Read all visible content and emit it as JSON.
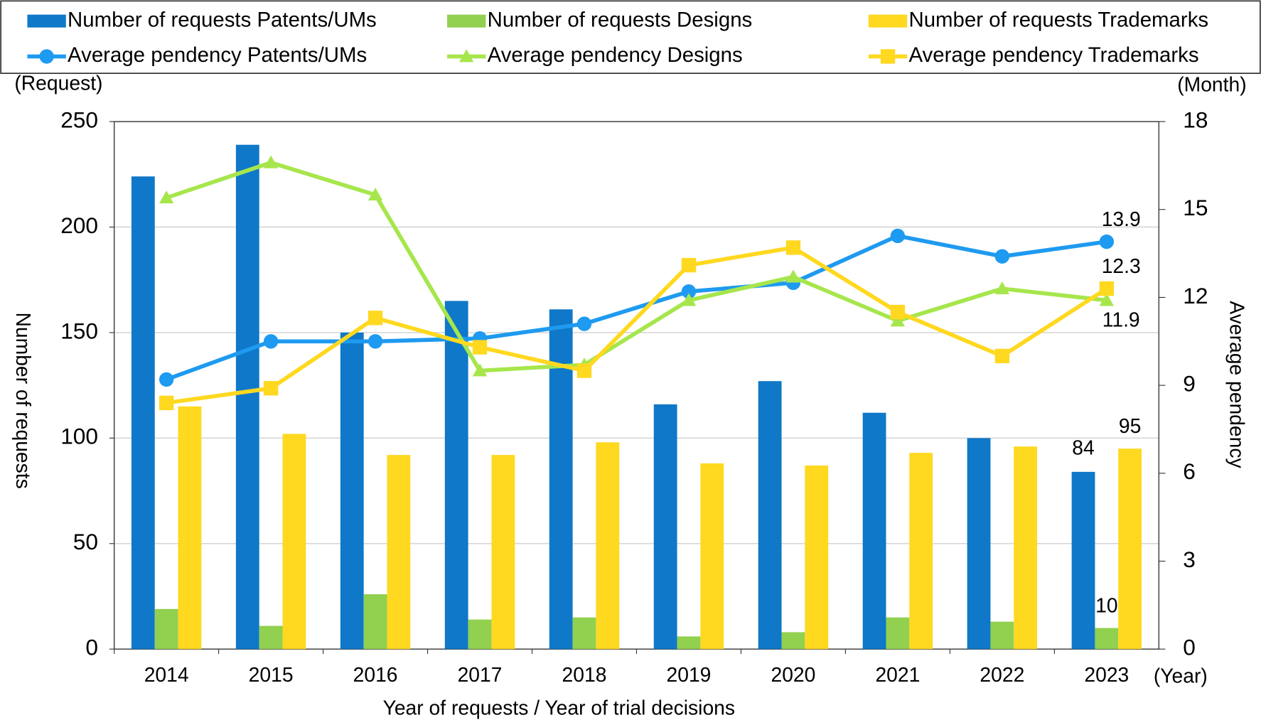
{
  "chart_data": {
    "type": "bar",
    "categories": [
      "2014",
      "2015",
      "2016",
      "2017",
      "2018",
      "2019",
      "2020",
      "2021",
      "2022",
      "2023"
    ],
    "series": [
      {
        "name": "Number of requests Patents/UMs",
        "type": "bar",
        "color": "#0f78c8",
        "values": [
          224,
          239,
          150,
          165,
          161,
          116,
          127,
          112,
          100,
          84
        ]
      },
      {
        "name": "Number of requests Designs",
        "type": "bar",
        "color": "#92d050",
        "values": [
          19,
          11,
          26,
          14,
          15,
          6,
          8,
          15,
          13,
          10
        ]
      },
      {
        "name": "Number of requests Trademarks",
        "type": "bar",
        "color": "#ffd820",
        "values": [
          115,
          102,
          92,
          92,
          98,
          88,
          87,
          93,
          96,
          95
        ]
      },
      {
        "name": "Average pendency Patents/UMs",
        "type": "line",
        "axis": "y2",
        "marker": "circle",
        "color": "#1e9af0",
        "values": [
          9.2,
          10.5,
          10.5,
          10.6,
          11.1,
          12.2,
          12.5,
          14.1,
          13.4,
          13.9
        ]
      },
      {
        "name": "Average pendency Designs",
        "type": "line",
        "axis": "y2",
        "marker": "triangle",
        "color": "#a6e64c",
        "values": [
          15.4,
          16.6,
          15.5,
          9.5,
          9.7,
          11.9,
          12.7,
          11.2,
          12.3,
          11.9
        ]
      },
      {
        "name": "Average pendency Trademarks",
        "type": "line",
        "axis": "y2",
        "marker": "square",
        "color": "#ffd820",
        "values": [
          8.4,
          8.9,
          11.3,
          10.3,
          9.5,
          13.1,
          13.7,
          11.5,
          10.0,
          12.3
        ]
      }
    ],
    "ylim": [
      0,
      250
    ],
    "yticks": [
      0,
      50,
      100,
      150,
      200,
      250
    ],
    "y2lim": [
      0,
      18
    ],
    "y2ticks": [
      0,
      3,
      6,
      9,
      12,
      15,
      18
    ],
    "grid": true,
    "ylabel": "Number of requests",
    "y2label": "Average pendency",
    "yunit": "(Request)",
    "y2unit": "(Month)",
    "xunit": "(Year)",
    "xlabel": "Year of requests / Year of trial decisions"
  }
}
